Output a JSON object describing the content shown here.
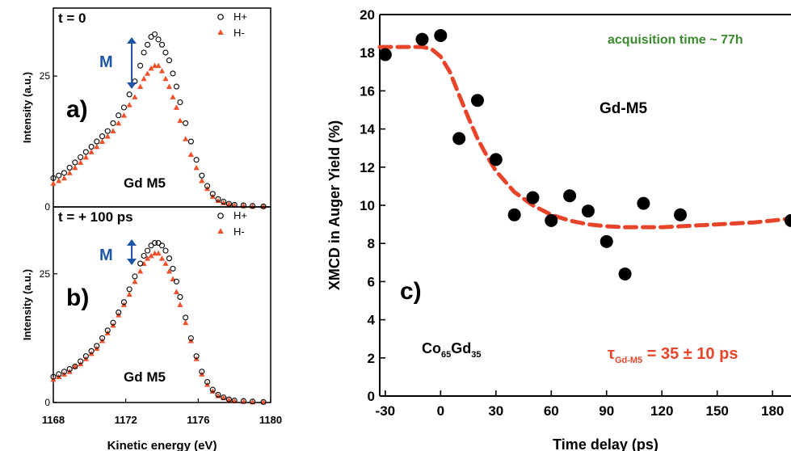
{
  "chart_data": [
    {
      "type": "scatter",
      "panel_label": "a)",
      "time_label": "t = 0",
      "element_label": "Gd M5",
      "moment_label": "M",
      "ylabel": "Intensity (a.u.)",
      "xlabel": "",
      "xlim": [
        1168,
        1180
      ],
      "ylim": [
        0,
        38
      ],
      "yticks": [
        0,
        25
      ],
      "legend": {
        "placement": "top-right",
        "entries": [
          "H+",
          "H-"
        ]
      },
      "series": [
        {
          "name": "H+",
          "marker": "open-circle",
          "color": "#000000",
          "x": [
            1168.0,
            1168.3,
            1168.6,
            1168.9,
            1169.2,
            1169.5,
            1169.8,
            1170.1,
            1170.4,
            1170.7,
            1171.0,
            1171.3,
            1171.6,
            1171.9,
            1172.2,
            1172.5,
            1172.8,
            1173.0,
            1173.2,
            1173.4,
            1173.6,
            1173.8,
            1174.0,
            1174.2,
            1174.4,
            1174.6,
            1174.8,
            1175.0,
            1175.3,
            1175.6,
            1175.9,
            1176.2,
            1176.5,
            1176.8,
            1177.1,
            1177.4,
            1177.7,
            1178.0,
            1178.5,
            1179.0,
            1179.6
          ],
          "y": [
            5.5,
            6.0,
            6.5,
            7.5,
            8.5,
            9.5,
            10.5,
            11.5,
            12.5,
            13.5,
            14.5,
            16.0,
            17.5,
            19.0,
            21.5,
            24.0,
            27.0,
            29.5,
            31.0,
            32.5,
            33.0,
            32.0,
            31.0,
            29.5,
            28.0,
            25.5,
            23.0,
            20.0,
            16.0,
            12.5,
            9.0,
            6.0,
            4.0,
            2.5,
            1.5,
            1.0,
            0.6,
            0.4,
            0.3,
            0.2,
            0.1
          ]
        },
        {
          "name": "H-",
          "marker": "filled-triangle",
          "color": "#f0502a",
          "x": [
            1168.0,
            1168.3,
            1168.6,
            1168.9,
            1169.2,
            1169.5,
            1169.8,
            1170.1,
            1170.4,
            1170.7,
            1171.0,
            1171.3,
            1171.6,
            1171.9,
            1172.2,
            1172.5,
            1172.8,
            1173.0,
            1173.2,
            1173.4,
            1173.6,
            1173.8,
            1174.0,
            1174.2,
            1174.4,
            1174.6,
            1174.8,
            1175.0,
            1175.3,
            1175.6,
            1175.9,
            1176.2,
            1176.5,
            1176.8,
            1177.1,
            1177.4,
            1177.7,
            1178.0,
            1178.5,
            1179.0,
            1179.6
          ],
          "y": [
            4.5,
            5.0,
            5.5,
            6.5,
            7.5,
            8.5,
            9.5,
            10.5,
            11.5,
            12.5,
            13.5,
            14.5,
            16.0,
            17.5,
            19.5,
            21.0,
            23.0,
            24.5,
            25.5,
            26.5,
            27.0,
            27.0,
            26.0,
            24.5,
            23.0,
            21.0,
            19.0,
            16.5,
            13.0,
            10.0,
            7.5,
            5.0,
            3.5,
            2.0,
            1.2,
            0.8,
            0.5,
            0.3,
            0.2,
            0.1,
            0.1
          ]
        }
      ]
    },
    {
      "type": "scatter",
      "panel_label": "b)",
      "time_label": "t = + 100 ps",
      "element_label": "Gd M5",
      "moment_label": "M",
      "ylabel": "Intensity (a.u.)",
      "xlabel": "Kinetic energy (eV)",
      "xlim": [
        1168,
        1180
      ],
      "ylim": [
        0,
        38
      ],
      "yticks": [
        0,
        25
      ],
      "xticks": [
        1168,
        1172,
        1176,
        1180
      ],
      "legend": {
        "placement": "top-right",
        "entries": [
          "H+",
          "H-"
        ]
      },
      "series": [
        {
          "name": "H+",
          "marker": "open-circle",
          "color": "#000000",
          "x": [
            1168.0,
            1168.3,
            1168.6,
            1168.9,
            1169.2,
            1169.5,
            1169.8,
            1170.1,
            1170.4,
            1170.7,
            1171.0,
            1171.3,
            1171.6,
            1171.9,
            1172.2,
            1172.5,
            1172.8,
            1173.0,
            1173.2,
            1173.4,
            1173.6,
            1173.8,
            1174.0,
            1174.2,
            1174.4,
            1174.6,
            1174.8,
            1175.0,
            1175.3,
            1175.6,
            1175.9,
            1176.2,
            1176.5,
            1176.8,
            1177.1,
            1177.4,
            1177.7,
            1178.0,
            1178.5,
            1179.0,
            1179.6
          ],
          "y": [
            5.0,
            5.5,
            6.0,
            6.5,
            7.0,
            8.0,
            9.0,
            10.0,
            11.0,
            12.5,
            14.0,
            15.5,
            17.5,
            19.5,
            22.0,
            24.5,
            27.0,
            28.5,
            29.5,
            30.5,
            31.0,
            31.0,
            30.5,
            29.5,
            28.0,
            26.0,
            23.5,
            20.5,
            16.5,
            12.5,
            9.0,
            6.0,
            4.0,
            2.5,
            1.5,
            1.0,
            0.6,
            0.4,
            0.3,
            0.2,
            0.1
          ]
        },
        {
          "name": "H-",
          "marker": "filled-triangle",
          "color": "#f0502a",
          "x": [
            1168.0,
            1168.3,
            1168.6,
            1168.9,
            1169.2,
            1169.5,
            1169.8,
            1170.1,
            1170.4,
            1170.7,
            1171.0,
            1171.3,
            1171.6,
            1171.9,
            1172.2,
            1172.5,
            1172.8,
            1173.0,
            1173.2,
            1173.4,
            1173.6,
            1173.8,
            1174.0,
            1174.2,
            1174.4,
            1174.6,
            1174.8,
            1175.0,
            1175.3,
            1175.6,
            1175.9,
            1176.2,
            1176.5,
            1176.8,
            1177.1,
            1177.4,
            1177.7,
            1178.0,
            1178.5,
            1179.0,
            1179.6
          ],
          "y": [
            4.5,
            5.0,
            5.5,
            6.0,
            7.0,
            7.5,
            8.5,
            9.5,
            10.5,
            12.0,
            13.5,
            15.0,
            17.0,
            19.0,
            21.0,
            23.5,
            25.5,
            27.0,
            28.0,
            28.5,
            29.0,
            29.0,
            28.0,
            27.0,
            25.5,
            24.0,
            21.5,
            19.0,
            15.5,
            12.0,
            8.5,
            5.5,
            3.5,
            2.2,
            1.3,
            0.9,
            0.5,
            0.3,
            0.2,
            0.1,
            0.1
          ]
        }
      ]
    },
    {
      "type": "scatter",
      "panel_label": "c)",
      "xlabel": "Time delay (ps)",
      "ylabel": "XMCD in Auger Yield (%)",
      "xlim": [
        -33,
        190
      ],
      "ylim": [
        0,
        20
      ],
      "xticks": [
        -30,
        0,
        30,
        60,
        90,
        120,
        150,
        180
      ],
      "yticks": [
        0,
        2,
        4,
        6,
        8,
        10,
        12,
        14,
        16,
        18,
        20
      ],
      "annotations": {
        "acquisition": "acquisition time ~ 77h",
        "element": "Gd-M5",
        "compound_base1": "Co",
        "compound_sub1": "65",
        "compound_base2": "Gd",
        "compound_sub2": "35",
        "tau_symbol": "τ",
        "tau_sub": "Gd-M5",
        "tau_value": " = 35 ± 10 ps"
      },
      "colors": {
        "fit": "#e8442a",
        "annotation_green": "#3a8a2e",
        "points": "#000000"
      },
      "points": {
        "x": [
          -30,
          -10,
          0,
          10,
          20,
          30,
          40,
          50,
          60,
          70,
          80,
          90,
          100,
          110,
          130,
          190
        ],
        "y": [
          17.9,
          18.7,
          18.9,
          13.5,
          15.5,
          12.4,
          9.5,
          10.4,
          9.2,
          10.5,
          9.7,
          8.1,
          6.4,
          10.1,
          9.5,
          9.2
        ]
      },
      "fit": {
        "x": [
          -33,
          -20,
          -10,
          -5,
          0,
          5,
          10,
          15,
          20,
          25,
          30,
          40,
          50,
          60,
          70,
          80,
          90,
          100,
          110,
          120,
          130,
          140,
          150,
          160,
          170,
          180,
          190
        ],
        "y": [
          18.3,
          18.3,
          18.3,
          18.2,
          17.8,
          17.0,
          15.8,
          14.6,
          13.5,
          12.6,
          11.8,
          10.7,
          10.0,
          9.5,
          9.2,
          9.0,
          8.9,
          8.85,
          8.85,
          8.85,
          8.9,
          8.95,
          9.0,
          9.05,
          9.1,
          9.2,
          9.3
        ]
      }
    }
  ]
}
